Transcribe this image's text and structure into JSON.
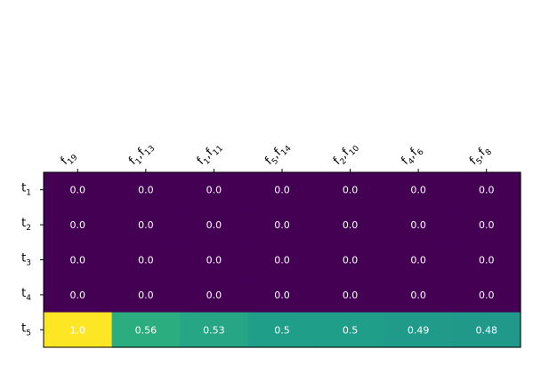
{
  "chart_data": {
    "type": "heatmap",
    "title": "",
    "xlabel": "",
    "ylabel": "",
    "x_ticks_position": "top",
    "colormap": "viridis",
    "value_range": [
      0,
      1
    ],
    "columns": [
      {
        "base": "f",
        "sub": "19",
        "text": "f19"
      },
      {
        "base": "f",
        "sub": "1",
        "base2": "f",
        "sub2": "13",
        "text": "f1,f13"
      },
      {
        "base": "f",
        "sub": "1",
        "base2": "f",
        "sub2": "11",
        "text": "f1,f11"
      },
      {
        "base": "f",
        "sub": "5",
        "base2": "f",
        "sub2": "14",
        "text": "f5,f14"
      },
      {
        "base": "f",
        "sub": "2",
        "base2": "f",
        "sub2": "10",
        "text": "f2,f10"
      },
      {
        "base": "f",
        "sub": "4",
        "base2": "f",
        "sub2": "6",
        "text": "f4,f6"
      },
      {
        "base": "f",
        "sub": "5",
        "base2": "f",
        "sub2": "8",
        "text": "f5,f8"
      }
    ],
    "rows": [
      {
        "base": "t",
        "sub": "1",
        "text": "t1"
      },
      {
        "base": "t",
        "sub": "2",
        "text": "t2"
      },
      {
        "base": "t",
        "sub": "3",
        "text": "t3"
      },
      {
        "base": "t",
        "sub": "4",
        "text": "t4"
      },
      {
        "base": "t",
        "sub": "5",
        "text": "t5"
      }
    ],
    "values": [
      [
        0.0,
        0.0,
        0.0,
        0.0,
        0.0,
        0.0,
        0.0
      ],
      [
        0.0,
        0.0,
        0.0,
        0.0,
        0.0,
        0.0,
        0.0
      ],
      [
        0.0,
        0.0,
        0.0,
        0.0,
        0.0,
        0.0,
        0.0
      ],
      [
        0.0,
        0.0,
        0.0,
        0.0,
        0.0,
        0.0,
        0.0
      ],
      [
        1.0,
        0.56,
        0.53,
        0.5,
        0.5,
        0.49,
        0.48
      ]
    ],
    "labels": [
      [
        "0.0",
        "0.0",
        "0.0",
        "0.0",
        "0.0",
        "0.0",
        "0.0"
      ],
      [
        "0.0",
        "0.0",
        "0.0",
        "0.0",
        "0.0",
        "0.0",
        "0.0"
      ],
      [
        "0.0",
        "0.0",
        "0.0",
        "0.0",
        "0.0",
        "0.0",
        "0.0"
      ],
      [
        "0.0",
        "0.0",
        "0.0",
        "0.0",
        "0.0",
        "0.0",
        "0.0"
      ],
      [
        "1.0",
        "0.56",
        "0.53",
        "0.5",
        "0.5",
        "0.49",
        "0.48"
      ]
    ],
    "colors": {
      "low": "#440154",
      "high": "#fde725",
      "cell_text": "#ffffff",
      "frame": "#000000"
    }
  }
}
